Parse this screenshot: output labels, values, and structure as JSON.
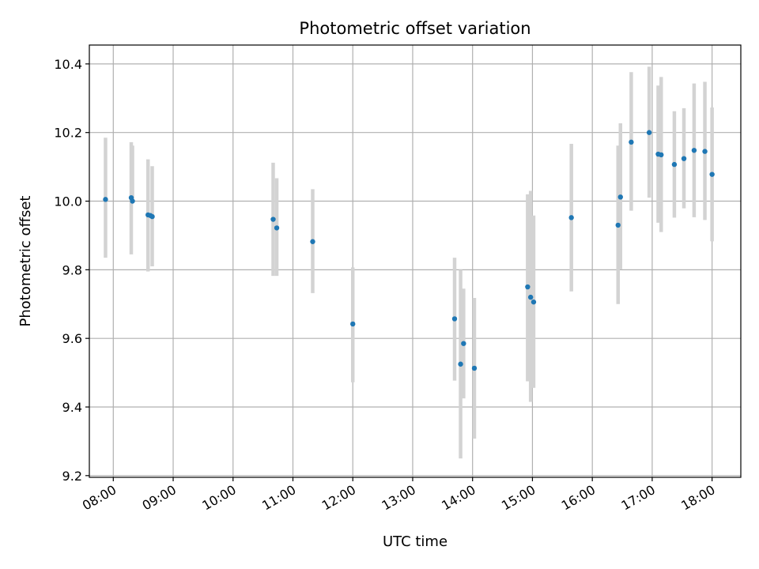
{
  "chart_data": {
    "type": "scatter",
    "title": "Photometric offset variation",
    "xlabel": "UTC time",
    "ylabel": "Photometric offset",
    "x_unit": "hours UTC",
    "xlim": [
      7.6,
      18.48
    ],
    "ylim": [
      9.195,
      10.455
    ],
    "x_ticks": [
      8,
      9,
      10,
      11,
      12,
      13,
      14,
      15,
      16,
      17,
      18
    ],
    "x_tick_labels": [
      "08:00",
      "09:00",
      "10:00",
      "11:00",
      "12:00",
      "13:00",
      "14:00",
      "15:00",
      "16:00",
      "17:00",
      "18:00"
    ],
    "y_ticks": [
      9.2,
      9.4,
      9.6,
      9.8,
      10.0,
      10.2,
      10.4
    ],
    "y_tick_labels": [
      "9.2",
      "9.4",
      "9.6",
      "9.8",
      "10.0",
      "10.2",
      "10.4"
    ],
    "grid": true,
    "marker_color": "#1f77b4",
    "errorbar_color": "#d3d3d3",
    "series": [
      {
        "x": [
          7.87,
          8.3,
          8.32,
          8.58,
          8.62,
          8.65,
          10.67,
          10.73,
          11.33,
          12.0,
          13.7,
          13.8,
          13.85,
          14.03,
          14.92,
          14.97,
          15.02,
          15.65,
          16.43,
          16.47,
          16.65,
          16.95,
          17.1,
          17.15,
          17.37,
          17.53,
          17.7,
          17.88,
          18.0
        ],
        "y": [
          10.005,
          10.01,
          10.0,
          9.96,
          9.958,
          9.955,
          9.947,
          9.922,
          9.882,
          9.642,
          9.657,
          9.525,
          9.585,
          9.513,
          9.75,
          9.72,
          9.706,
          9.952,
          9.93,
          10.012,
          10.172,
          10.2,
          10.137,
          10.135,
          10.107,
          10.124,
          10.148,
          10.145,
          10.078
        ],
        "yerr_low": [
          0.17,
          0.165,
          0.0,
          0.165,
          0.0,
          0.145,
          0.165,
          0.14,
          0.15,
          0.17,
          0.18,
          0.275,
          0.16,
          0.205,
          0.275,
          0.305,
          0.25,
          0.215,
          0.23,
          0.21,
          0.2,
          0.19,
          0.2,
          0.225,
          0.155,
          0.145,
          0.195,
          0.2,
          0.195
        ],
        "yerr_high": [
          0.18,
          0.162,
          0.162,
          0.162,
          0.0,
          0.147,
          0.165,
          0.145,
          0.153,
          0.165,
          0.178,
          0.275,
          0.16,
          0.205,
          0.27,
          0.31,
          0.252,
          0.215,
          0.232,
          0.215,
          0.204,
          0.192,
          0.2,
          0.227,
          0.155,
          0.147,
          0.195,
          0.203,
          0.195
        ]
      }
    ]
  }
}
